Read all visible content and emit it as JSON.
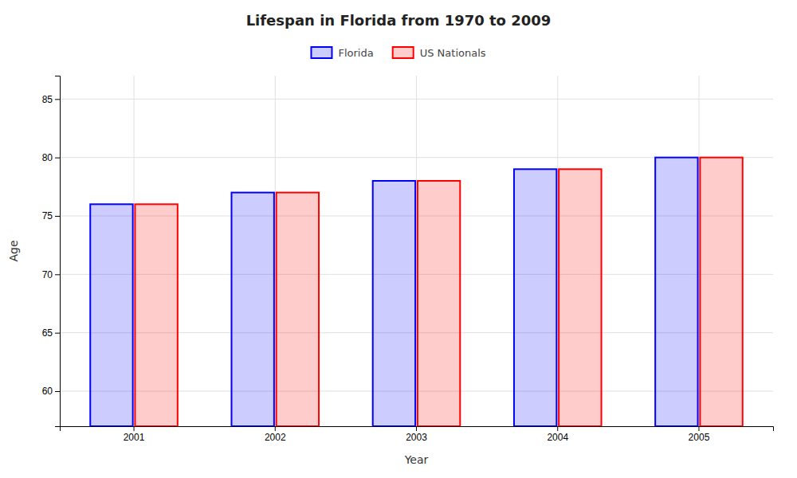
{
  "chart_data": {
    "type": "bar",
    "title": "Lifespan in Florida from 1970 to 2009",
    "xlabel": "Year",
    "ylabel": "Age",
    "categories": [
      "2001",
      "2002",
      "2003",
      "2004",
      "2005"
    ],
    "series": [
      {
        "name": "Florida",
        "color": "#0000ff",
        "values": [
          76,
          77,
          78,
          79,
          80
        ]
      },
      {
        "name": "US Nationals",
        "color": "#ff0000",
        "values": [
          76,
          77,
          78,
          79,
          80
        ]
      }
    ],
    "ylim": [
      57,
      87
    ],
    "yticks": [
      60,
      65,
      70,
      75,
      80,
      85
    ],
    "grid": true,
    "legend": "top"
  }
}
